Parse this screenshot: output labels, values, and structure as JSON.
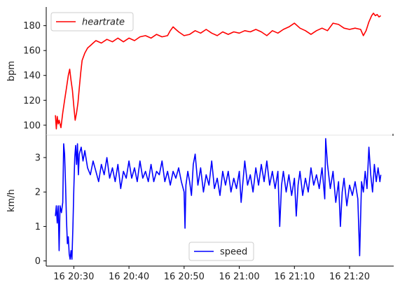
{
  "chart_data": [
    {
      "type": "line",
      "ylabel": "bpm",
      "ylim": [
        92,
        195
      ],
      "yticks": [
        100,
        120,
        140,
        160,
        180
      ],
      "grid": false,
      "legend": {
        "position": "top-left",
        "entries": [
          "heartrate"
        ]
      },
      "series": [
        {
          "name": "heartrate",
          "color": "#ff0000",
          "points": [
            [
              "20:26:40",
              108
            ],
            [
              "20:26:50",
              97
            ],
            [
              "20:27:00",
              107
            ],
            [
              "20:27:10",
              101
            ],
            [
              "20:27:20",
              104
            ],
            [
              "20:27:40",
              98
            ],
            [
              "20:28:00",
              110
            ],
            [
              "20:28:20",
              120
            ],
            [
              "20:28:40",
              130
            ],
            [
              "20:29:00",
              140
            ],
            [
              "20:29:15",
              145
            ],
            [
              "20:29:30",
              136
            ],
            [
              "20:29:45",
              128
            ],
            [
              "20:30:00",
              115
            ],
            [
              "20:30:15",
              104
            ],
            [
              "20:30:30",
              110
            ],
            [
              "20:30:45",
              118
            ],
            [
              "20:31:00",
              130
            ],
            [
              "20:31:15",
              142
            ],
            [
              "20:31:30",
              152
            ],
            [
              "20:32:00",
              158
            ],
            [
              "20:32:30",
              162
            ],
            [
              "20:33:00",
              164
            ],
            [
              "20:33:30",
              166
            ],
            [
              "20:34:00",
              168
            ],
            [
              "20:35:00",
              166
            ],
            [
              "20:36:00",
              169
            ],
            [
              "20:37:00",
              167
            ],
            [
              "20:38:00",
              170
            ],
            [
              "20:39:00",
              167
            ],
            [
              "20:40:00",
              170
            ],
            [
              "20:41:00",
              168
            ],
            [
              "20:42:00",
              171
            ],
            [
              "20:43:00",
              172
            ],
            [
              "20:44:00",
              170
            ],
            [
              "20:45:00",
              173
            ],
            [
              "20:46:00",
              171
            ],
            [
              "20:47:00",
              172
            ],
            [
              "20:47:30",
              176
            ],
            [
              "20:48:00",
              179
            ],
            [
              "20:48:30",
              177
            ],
            [
              "20:49:00",
              175
            ],
            [
              "20:50:00",
              172
            ],
            [
              "20:51:00",
              173
            ],
            [
              "20:52:00",
              176
            ],
            [
              "20:53:00",
              174
            ],
            [
              "20:54:00",
              177
            ],
            [
              "20:55:00",
              174
            ],
            [
              "20:56:00",
              172
            ],
            [
              "20:57:00",
              175
            ],
            [
              "20:58:00",
              173
            ],
            [
              "20:59:00",
              175
            ],
            [
              "21:00:00",
              174
            ],
            [
              "21:01:00",
              176
            ],
            [
              "21:02:00",
              175
            ],
            [
              "21:03:00",
              177
            ],
            [
              "21:04:00",
              175
            ],
            [
              "21:05:00",
              172
            ],
            [
              "21:06:00",
              176
            ],
            [
              "21:07:00",
              174
            ],
            [
              "21:08:00",
              177
            ],
            [
              "21:09:00",
              179
            ],
            [
              "21:10:00",
              182
            ],
            [
              "21:11:00",
              178
            ],
            [
              "21:12:00",
              176
            ],
            [
              "21:13:00",
              173
            ],
            [
              "21:14:00",
              176
            ],
            [
              "21:15:00",
              178
            ],
            [
              "21:16:00",
              176
            ],
            [
              "21:17:00",
              182
            ],
            [
              "21:18:00",
              181
            ],
            [
              "21:19:00",
              178
            ],
            [
              "21:20:00",
              177
            ],
            [
              "21:21:00",
              178
            ],
            [
              "21:22:00",
              177
            ],
            [
              "21:22:30",
              172
            ],
            [
              "21:23:00",
              176
            ],
            [
              "21:23:30",
              183
            ],
            [
              "21:24:00",
              188
            ],
            [
              "21:24:20",
              190
            ],
            [
              "21:24:40",
              188
            ],
            [
              "21:25:00",
              189
            ],
            [
              "21:25:20",
              187
            ],
            [
              "21:25:40",
              188
            ]
          ]
        }
      ]
    },
    {
      "type": "line",
      "ylabel": "km/h",
      "ylim": [
        -0.15,
        3.65
      ],
      "yticks": [
        0,
        1,
        2,
        3
      ],
      "xlim": [
        "20:25:00",
        "21:28:00"
      ],
      "xticks": [
        "16 20:30",
        "16 20:40",
        "16 20:50",
        "16 21:00",
        "16 21:10",
        "16 21:20"
      ],
      "grid": false,
      "legend": {
        "position": "bottom-center",
        "entries": [
          "speed"
        ]
      },
      "series": [
        {
          "name": "speed",
          "color": "#0000ff",
          "points": [
            [
              "20:26:40",
              1.3
            ],
            [
              "20:26:50",
              1.6
            ],
            [
              "20:27:00",
              1.1
            ],
            [
              "20:27:10",
              1.6
            ],
            [
              "20:27:20",
              0.3
            ],
            [
              "20:27:30",
              1.6
            ],
            [
              "20:27:45",
              1.4
            ],
            [
              "20:28:00",
              1.7
            ],
            [
              "20:28:10",
              3.4
            ],
            [
              "20:28:20",
              3.1
            ],
            [
              "20:28:30",
              2.2
            ],
            [
              "20:28:40",
              1.2
            ],
            [
              "20:28:50",
              0.5
            ],
            [
              "20:29:00",
              0.7
            ],
            [
              "20:29:10",
              0.2
            ],
            [
              "20:29:20",
              0.05
            ],
            [
              "20:29:30",
              0.3
            ],
            [
              "20:29:40",
              0.05
            ],
            [
              "20:29:50",
              1.0
            ],
            [
              "20:30:00",
              2.1
            ],
            [
              "20:30:10",
              3.0
            ],
            [
              "20:30:20",
              3.35
            ],
            [
              "20:30:30",
              2.8
            ],
            [
              "20:30:40",
              3.4
            ],
            [
              "20:30:50",
              2.5
            ],
            [
              "20:31:00",
              3.1
            ],
            [
              "20:31:20",
              3.3
            ],
            [
              "20:31:40",
              2.9
            ],
            [
              "20:32:00",
              3.2
            ],
            [
              "20:32:30",
              2.7
            ],
            [
              "20:33:00",
              2.5
            ],
            [
              "20:33:30",
              2.9
            ],
            [
              "20:34:00",
              2.6
            ],
            [
              "20:34:30",
              2.3
            ],
            [
              "20:35:00",
              2.8
            ],
            [
              "20:35:30",
              2.5
            ],
            [
              "20:36:00",
              3.0
            ],
            [
              "20:36:30",
              2.4
            ],
            [
              "20:37:00",
              2.7
            ],
            [
              "20:37:30",
              2.3
            ],
            [
              "20:38:00",
              2.8
            ],
            [
              "20:38:30",
              2.1
            ],
            [
              "20:39:00",
              2.6
            ],
            [
              "20:39:30",
              2.4
            ],
            [
              "20:40:00",
              2.9
            ],
            [
              "20:40:30",
              2.4
            ],
            [
              "20:41:00",
              2.7
            ],
            [
              "20:41:30",
              2.3
            ],
            [
              "20:42:00",
              2.9
            ],
            [
              "20:42:30",
              2.4
            ],
            [
              "20:43:00",
              2.6
            ],
            [
              "20:43:30",
              2.3
            ],
            [
              "20:44:00",
              2.8
            ],
            [
              "20:44:30",
              2.3
            ],
            [
              "20:45:00",
              2.6
            ],
            [
              "20:45:30",
              2.5
            ],
            [
              "20:46:00",
              2.9
            ],
            [
              "20:46:30",
              2.3
            ],
            [
              "20:47:00",
              2.6
            ],
            [
              "20:47:30",
              2.2
            ],
            [
              "20:48:00",
              2.6
            ],
            [
              "20:48:30",
              2.4
            ],
            [
              "20:49:00",
              2.7
            ],
            [
              "20:49:30",
              2.3
            ],
            [
              "20:50:00",
              2.0
            ],
            [
              "20:50:10",
              0.95
            ],
            [
              "20:50:20",
              2.2
            ],
            [
              "20:50:40",
              2.6
            ],
            [
              "20:51:00",
              2.3
            ],
            [
              "20:51:20",
              1.9
            ],
            [
              "20:51:40",
              2.8
            ],
            [
              "20:52:00",
              3.1
            ],
            [
              "20:52:30",
              2.2
            ],
            [
              "20:53:00",
              2.7
            ],
            [
              "20:53:30",
              2.0
            ],
            [
              "20:54:00",
              2.5
            ],
            [
              "20:54:30",
              2.2
            ],
            [
              "20:55:00",
              2.9
            ],
            [
              "20:55:30",
              2.1
            ],
            [
              "20:56:00",
              2.4
            ],
            [
              "20:56:30",
              1.9
            ],
            [
              "20:57:00",
              2.6
            ],
            [
              "20:57:30",
              2.2
            ],
            [
              "20:58:00",
              2.6
            ],
            [
              "20:58:30",
              2.0
            ],
            [
              "20:59:00",
              2.4
            ],
            [
              "20:59:30",
              2.1
            ],
            [
              "21:00:00",
              2.6
            ],
            [
              "21:00:20",
              1.7
            ],
            [
              "21:00:40",
              2.3
            ],
            [
              "21:01:00",
              2.9
            ],
            [
              "21:01:30",
              2.2
            ],
            [
              "21:02:00",
              2.5
            ],
            [
              "21:02:30",
              2.0
            ],
            [
              "21:03:00",
              2.7
            ],
            [
              "21:03:30",
              2.2
            ],
            [
              "21:04:00",
              2.8
            ],
            [
              "21:04:30",
              2.3
            ],
            [
              "21:05:00",
              2.9
            ],
            [
              "21:05:30",
              2.2
            ],
            [
              "21:06:00",
              2.6
            ],
            [
              "21:06:30",
              2.1
            ],
            [
              "21:07:00",
              2.6
            ],
            [
              "21:07:20",
              1.0
            ],
            [
              "21:07:40",
              2.2
            ],
            [
              "21:08:00",
              2.6
            ],
            [
              "21:08:30",
              2.0
            ],
            [
              "21:09:00",
              2.5
            ],
            [
              "21:09:30",
              1.9
            ],
            [
              "21:10:00",
              2.4
            ],
            [
              "21:10:20",
              1.3
            ],
            [
              "21:10:40",
              2.2
            ],
            [
              "21:11:00",
              2.6
            ],
            [
              "21:11:30",
              1.9
            ],
            [
              "21:12:00",
              2.4
            ],
            [
              "21:12:30",
              2.0
            ],
            [
              "21:13:00",
              2.7
            ],
            [
              "21:13:30",
              2.2
            ],
            [
              "21:14:00",
              2.5
            ],
            [
              "21:14:30",
              2.1
            ],
            [
              "21:15:00",
              2.7
            ],
            [
              "21:15:30",
              1.8
            ],
            [
              "21:15:40",
              3.55
            ],
            [
              "21:16:00",
              2.8
            ],
            [
              "21:16:30",
              2.1
            ],
            [
              "21:17:00",
              2.6
            ],
            [
              "21:17:30",
              1.7
            ],
            [
              "21:18:00",
              2.3
            ],
            [
              "21:18:20",
              1.0
            ],
            [
              "21:18:40",
              2.0
            ],
            [
              "21:19:00",
              2.4
            ],
            [
              "21:19:30",
              1.6
            ],
            [
              "21:20:00",
              2.2
            ],
            [
              "21:20:30",
              1.9
            ],
            [
              "21:21:00",
              2.3
            ],
            [
              "21:21:30",
              1.8
            ],
            [
              "21:21:50",
              0.15
            ],
            [
              "21:22:10",
              2.3
            ],
            [
              "21:22:30",
              2.0
            ],
            [
              "21:22:50",
              2.6
            ],
            [
              "21:23:10",
              2.1
            ],
            [
              "21:23:30",
              3.3
            ],
            [
              "21:23:50",
              2.5
            ],
            [
              "21:24:10",
              2.0
            ],
            [
              "21:24:30",
              2.8
            ],
            [
              "21:24:50",
              2.3
            ],
            [
              "21:25:10",
              2.7
            ],
            [
              "21:25:30",
              2.3
            ],
            [
              "21:25:40",
              2.5
            ]
          ]
        }
      ]
    }
  ]
}
